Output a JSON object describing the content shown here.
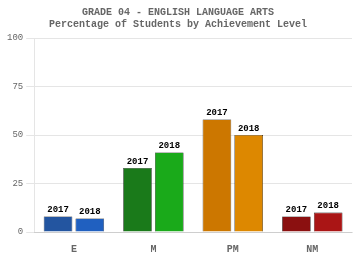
{
  "chart_data": {
    "type": "bar",
    "title": "GRADE 04 - ENGLISH LANGUAGE ARTS\nPercentage of Students by Achievement Level",
    "categories": [
      "E",
      "M",
      "PM",
      "NM"
    ],
    "series": [
      {
        "name": "2017",
        "values": [
          8,
          33,
          58,
          8
        ],
        "colors": [
          "#2355a0",
          "#1a7a1a",
          "#cc7700",
          "#8b1010"
        ]
      },
      {
        "name": "2018",
        "values": [
          7,
          41,
          50,
          10
        ],
        "colors": [
          "#2060c0",
          "#1aaa1a",
          "#dd8800",
          "#aa1515"
        ]
      }
    ],
    "ylim": [
      0,
      100
    ],
    "yticks": [
      0,
      25,
      50,
      75,
      100
    ],
    "grid": true
  }
}
